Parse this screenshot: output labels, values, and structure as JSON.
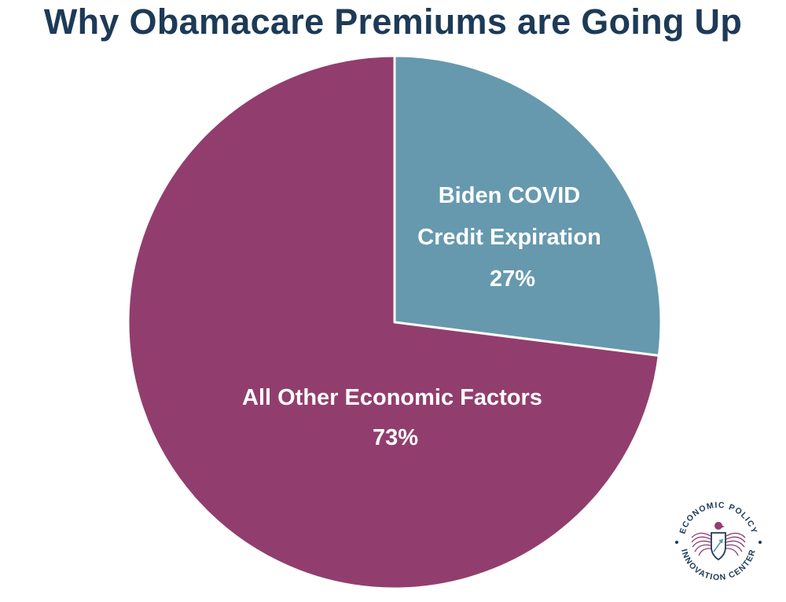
{
  "chart_data": {
    "type": "pie",
    "title": "Why Obamacare Premiums are Going Up",
    "start_angle": "12 o'clock",
    "direction": "clockwise",
    "slices": [
      {
        "label_lines": [
          "Biden COVID",
          "Credit Expiration"
        ],
        "value": 27,
        "value_label": "27%",
        "color": "#6699ae"
      },
      {
        "label_lines": [
          "All Other Economic Factors"
        ],
        "value": 73,
        "value_label": "73%",
        "color": "#913e6e"
      }
    ]
  },
  "logo": {
    "top_text": "ECONOMIC POLICY",
    "bottom_text": "INNOVATION CENTER",
    "primary_color": "#1d3a57",
    "accent_color": "#913e6e",
    "icon": "eagle-shield-icon"
  }
}
